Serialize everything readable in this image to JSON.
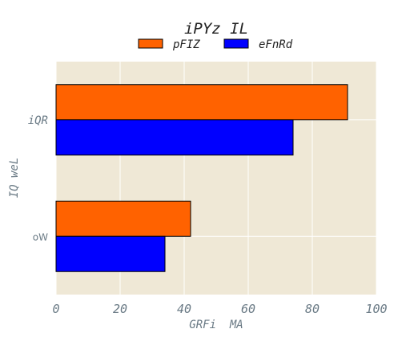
{
  "chart_data": {
    "type": "bar",
    "orientation": "horizontal",
    "title": "iPYz IL",
    "xlabel": "GRFi  MA",
    "ylabel": "IQ weL",
    "categories": [
      "iQR",
      "oW"
    ],
    "series": [
      {
        "name": "pFIZ",
        "values": [
          91,
          42
        ],
        "color": "#ff6200"
      },
      {
        "name": "eFnRd",
        "values": [
          74,
          34
        ],
        "color": "#0000ff"
      }
    ],
    "xlim": [
      0,
      100
    ],
    "xticks": [
      0,
      20,
      40,
      60,
      80,
      100
    ],
    "grid": true,
    "legend_position": "top-center",
    "colors": {
      "plot_background": "#efe8d6",
      "grid": "#ffffff",
      "text": "#6a7a85",
      "title": "#222222"
    }
  }
}
